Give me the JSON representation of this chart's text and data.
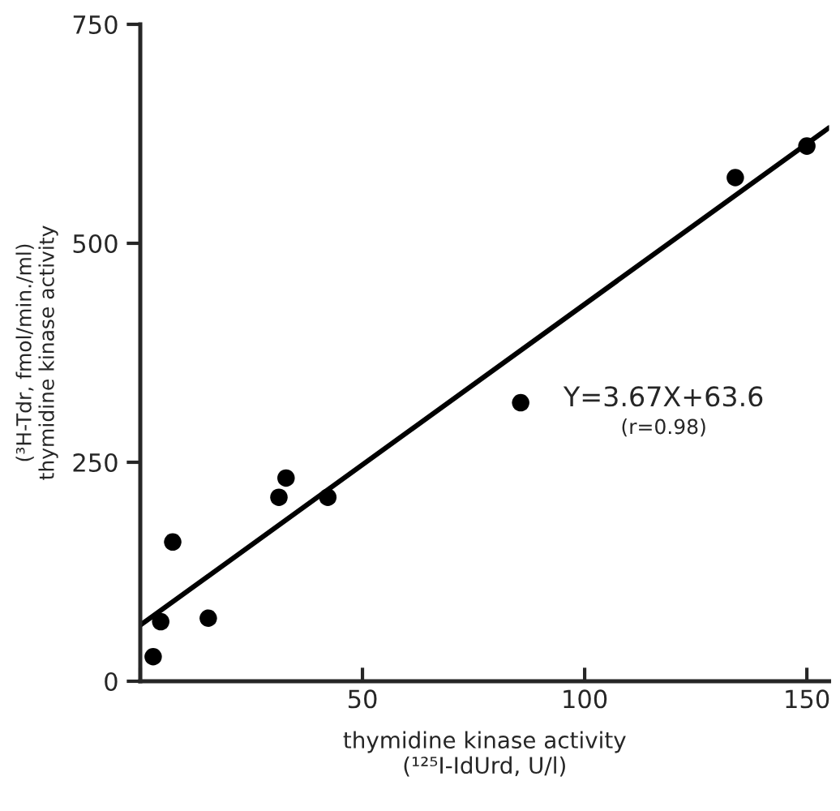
{
  "chart_data": {
    "type": "scatter",
    "xlabel": "thymidine kinase activity\n(¹²⁵I-IdUrd, U/l)",
    "ylabel": "(³H-Tdr, fmol/min./ml)\nthymidine kinase activity",
    "annotations": [
      "Y=3.67X+63.6",
      "(r=0.98)"
    ],
    "series": [
      {
        "color": "#000000",
        "marker": "circle",
        "x": [
          2.9,
          4.6,
          7.3,
          15.3,
          31.2,
          32.8,
          42.2,
          85.6,
          133.9,
          150
        ],
        "values": [
          28,
          68,
          159,
          72,
          210,
          232,
          210,
          318,
          575,
          611
        ]
      },
      {
        "type": "line",
        "color": "#000000",
        "marker": "none",
        "x": [
          0,
          155
        ],
        "values": [
          64,
          632
        ]
      }
    ],
    "xlim": [
      0,
      155
    ],
    "xticks": [
      {
        "value": 0,
        "label": null
      },
      50,
      100,
      150
    ],
    "ylim": [
      0,
      750
    ],
    "yticks": [
      0,
      250,
      500,
      750
    ],
    "grid": false,
    "legend": false
  }
}
